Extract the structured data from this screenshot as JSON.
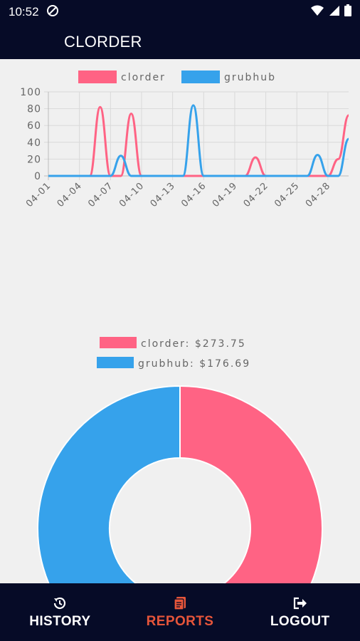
{
  "status_bar": {
    "time": "10:52"
  },
  "app_bar": {
    "title": "CLORDER"
  },
  "colors": {
    "clorder": "#ff6384",
    "grubhub": "#36a2eb",
    "nav_bg": "#060b27",
    "active": "#e6553a"
  },
  "line_chart": {
    "chart_data": {
      "type": "line",
      "x": [
        "04-01",
        "04-02",
        "04-03",
        "04-04",
        "04-05",
        "04-06",
        "04-07",
        "04-08",
        "04-09",
        "04-10",
        "04-11",
        "04-12",
        "04-13",
        "04-14",
        "04-15",
        "04-16",
        "04-17",
        "04-18",
        "04-19",
        "04-20",
        "04-21",
        "04-22",
        "04-23",
        "04-24",
        "04-25",
        "04-26",
        "04-27",
        "04-28",
        "04-29",
        "04-30"
      ],
      "tick_labels": [
        "04-01",
        "04-04",
        "04-07",
        "04-10",
        "04-13",
        "04-16",
        "04-19",
        "04-22",
        "04-25",
        "04-28"
      ],
      "series": [
        {
          "name": "clorder",
          "color": "#ff6384",
          "values": [
            0,
            0,
            0,
            0,
            0,
            82,
            0,
            0,
            74,
            0,
            0,
            0,
            0,
            0,
            0,
            0,
            0,
            0,
            0,
            0,
            22,
            0,
            0,
            0,
            0,
            0,
            0,
            0,
            20,
            72
          ]
        },
        {
          "name": "grubhub",
          "color": "#36a2eb",
          "values": [
            0,
            0,
            0,
            0,
            0,
            0,
            0,
            24,
            0,
            0,
            0,
            0,
            0,
            0,
            84,
            0,
            0,
            0,
            0,
            0,
            0,
            0,
            0,
            0,
            0,
            0,
            25,
            0,
            0,
            44
          ]
        }
      ],
      "y_ticks": [
        "100",
        "80",
        "60",
        "40",
        "20",
        "0"
      ],
      "ylim": [
        0,
        100
      ],
      "grid": true,
      "legend": "top-center"
    }
  },
  "pie_chart": {
    "legend": [
      "clorder: $273.75",
      "grubhub: $176.69"
    ],
    "chart_data": {
      "type": "pie",
      "categories": [
        "clorder",
        "grubhub"
      ],
      "values": [
        273.75,
        176.69
      ],
      "colors": [
        "#ff6384",
        "#36a2eb"
      ],
      "legend": "top-center"
    }
  },
  "bottom_nav": {
    "items": [
      {
        "label": "HISTORY",
        "icon": "history-icon"
      },
      {
        "label": "REPORTS",
        "icon": "reports-icon"
      },
      {
        "label": "LOGOUT",
        "icon": "logout-icon"
      }
    ]
  }
}
